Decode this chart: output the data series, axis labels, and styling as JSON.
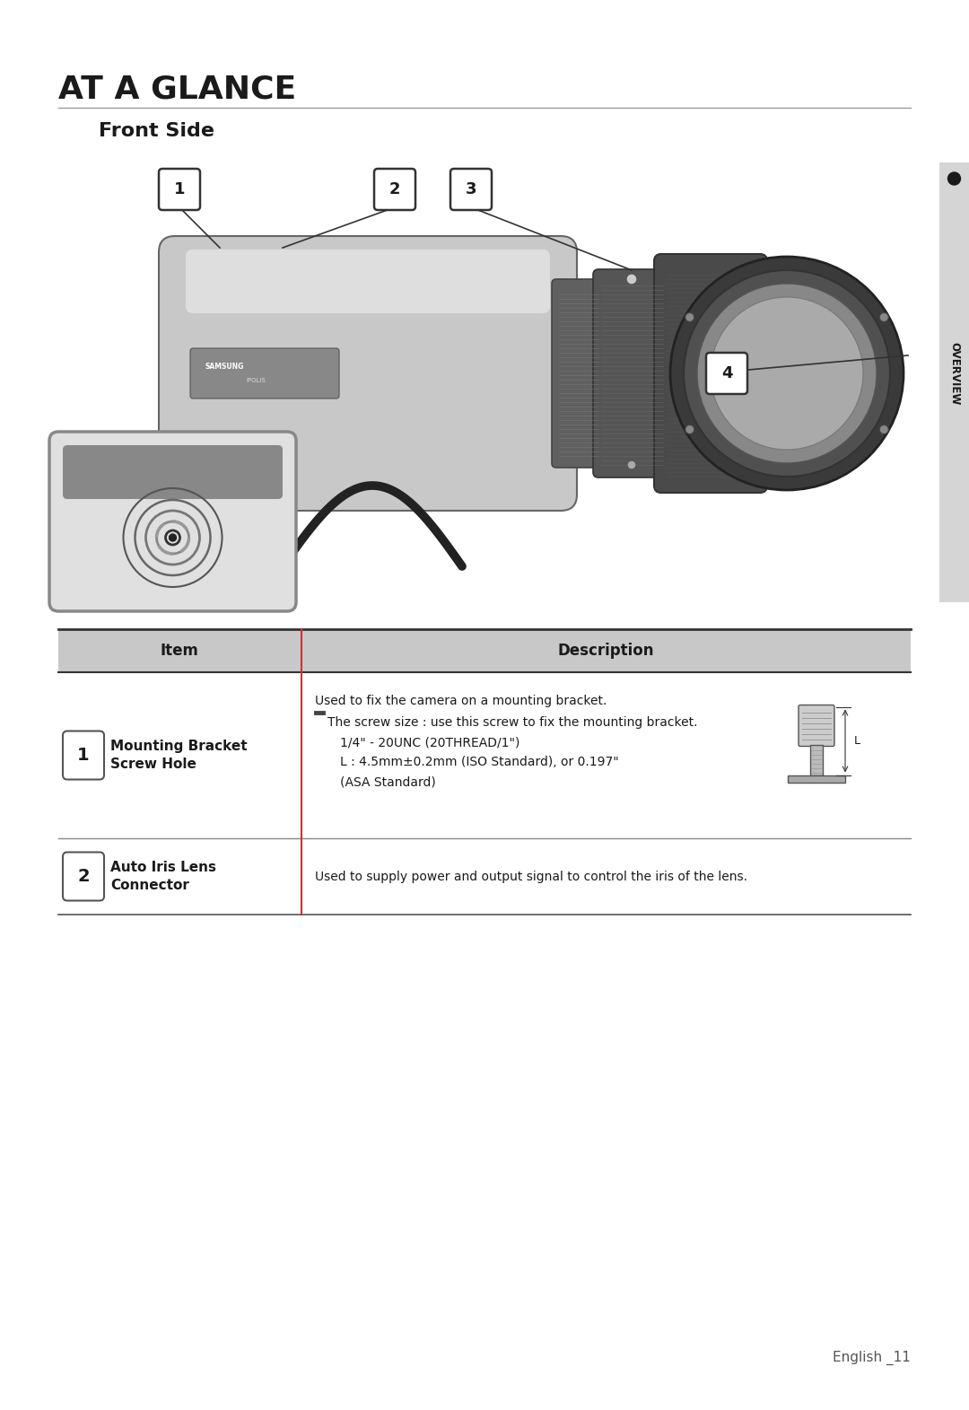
{
  "title": "AT A GLANCE",
  "subtitle": "Front Side",
  "bg_color": "#ffffff",
  "title_color": "#1a1a1a",
  "title_fontsize": 26,
  "subtitle_fontsize": 16,
  "page_label": "English _11",
  "sidebar_label": "OVERVIEW",
  "table_header_bg": "#c8c8c8",
  "table_border_color": "#333333",
  "table_divider_color": "#cc3333",
  "row1_desc_line1": "Used to fix the camera on a mounting bracket.",
  "row1_desc_bullet_text": "The screw size : use this screw to fix the mounting bracket.",
  "row1_desc_line3": "1/4\" - 20UNC (20THREAD/1\")",
  "row1_desc_line4": "L : 4.5mm±0.2mm (ISO Standard), or 0.197\"",
  "row1_desc_line5": "(ASA Standard)",
  "row2_desc": "Used to supply power and output signal to control the iris of the lens."
}
